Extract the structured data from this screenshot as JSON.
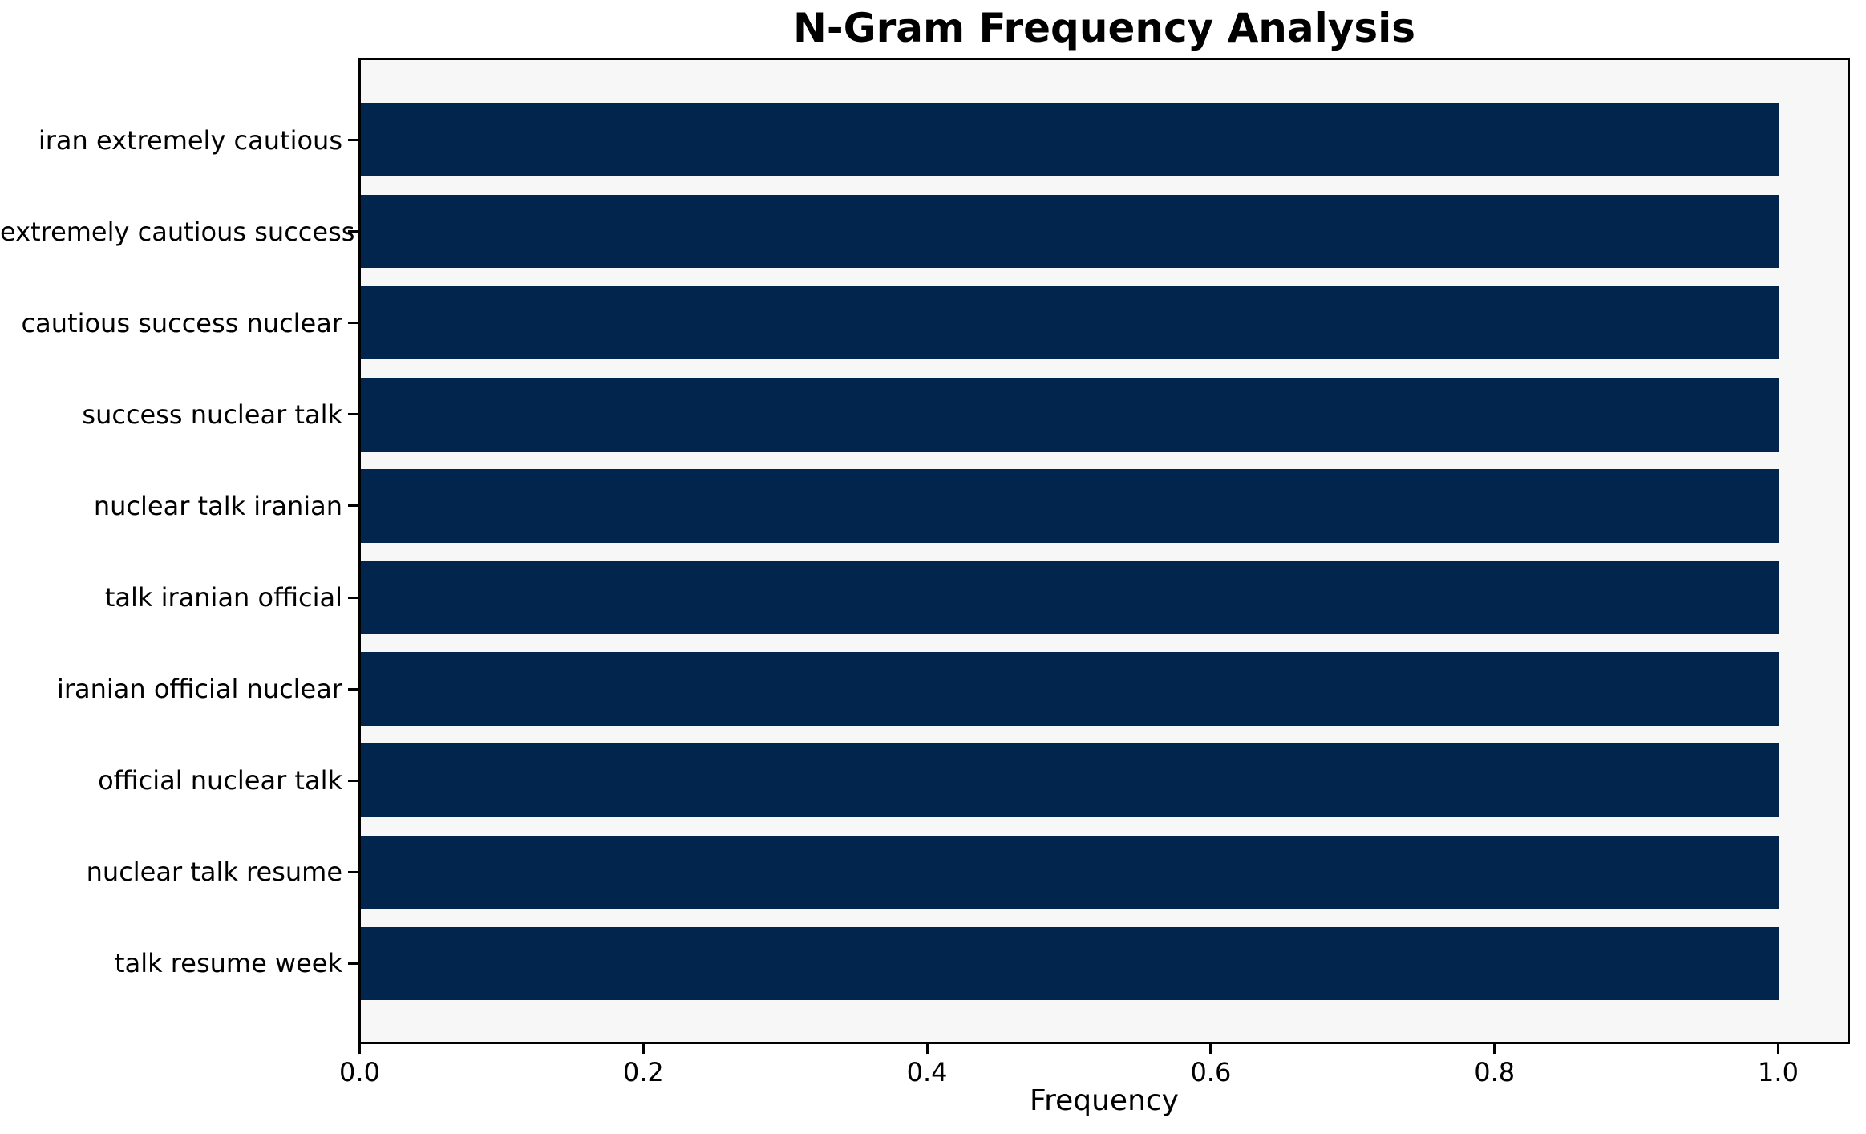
{
  "chart_data": {
    "type": "bar",
    "orientation": "horizontal",
    "title": "N-Gram Frequency Analysis",
    "xlabel": "Frequency",
    "ylabel": "",
    "categories": [
      "iran extremely cautious",
      "extremely cautious success",
      "cautious success nuclear",
      "success nuclear talk",
      "nuclear talk iranian",
      "talk iranian official",
      "iranian official nuclear",
      "official nuclear talk",
      "nuclear talk resume",
      "talk resume week"
    ],
    "values": [
      1.0,
      1.0,
      1.0,
      1.0,
      1.0,
      1.0,
      1.0,
      1.0,
      1.0,
      1.0
    ],
    "xlim": [
      0,
      1.05
    ],
    "xticks": [
      "0.0",
      "0.2",
      "0.4",
      "0.6",
      "0.8",
      "1.0"
    ],
    "xtick_values": [
      0.0,
      0.2,
      0.4,
      0.6,
      0.8,
      1.0
    ],
    "grid": false,
    "legend": "none",
    "colors": {
      "bar": "#02254e",
      "plot_background": "#f7f7f7",
      "figure_background": "#ffffff",
      "text": "#000000"
    }
  }
}
